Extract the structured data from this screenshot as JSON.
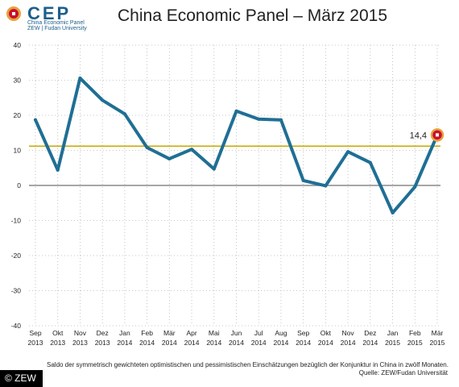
{
  "logo": {
    "word": "CEP",
    "line1": "China Economic Panel",
    "line2": "ZEW | Fudan University"
  },
  "title": "China Economic Panel – März 2015",
  "chart_data": {
    "type": "line",
    "title": "China Economic Panel – März 2015",
    "xlabel": "",
    "ylabel": "",
    "ylim": [
      -40,
      40
    ],
    "yticks": [
      "40",
      "30",
      "20",
      "10",
      "0",
      "-10",
      "-20",
      "-30",
      "-40"
    ],
    "grid": true,
    "categories": [
      [
        "Sep",
        "2013"
      ],
      [
        "Okt",
        "2013"
      ],
      [
        "Nov",
        "2013"
      ],
      [
        "Dez",
        "2013"
      ],
      [
        "Jan",
        "2014"
      ],
      [
        "Feb",
        "2014"
      ],
      [
        "Mär",
        "2014"
      ],
      [
        "Apr",
        "2014"
      ],
      [
        "Mai",
        "2014"
      ],
      [
        "Jun",
        "2014"
      ],
      [
        "Jul",
        "2014"
      ],
      [
        "Aug",
        "2014"
      ],
      [
        "Sep",
        "2014"
      ],
      [
        "Okt",
        "2014"
      ],
      [
        "Nov",
        "2014"
      ],
      [
        "Dez",
        "2014"
      ],
      [
        "Jan",
        "2015"
      ],
      [
        "Feb",
        "2015"
      ],
      [
        "Mär",
        "2015"
      ]
    ],
    "series": [
      {
        "values": [
          18.7,
          4.4,
          30.6,
          24.3,
          20.4,
          10.8,
          7.6,
          10.3,
          4.7,
          21.2,
          18.9,
          18.7,
          1.4,
          -0.1,
          9.6,
          6.5,
          -7.8,
          -0.4,
          14.4
        ],
        "color": "#1f6f94"
      }
    ],
    "reference_line": {
      "value": 11.2,
      "color": "#c8a800"
    },
    "zero_line_color": "#888888",
    "highlight": {
      "index": 18,
      "label": "14,4",
      "color": "#c8102e",
      "ring": "#e8a13a"
    }
  },
  "footnote": "Saldo der symmetrisch gewichteten optimistischen und pessimistischen Einschätzungen bezüglich der Konjunktur in China in zwölf Monaten.",
  "source": "Quelle: ZEW/Fudan Universität",
  "copyright": "© ZEW"
}
